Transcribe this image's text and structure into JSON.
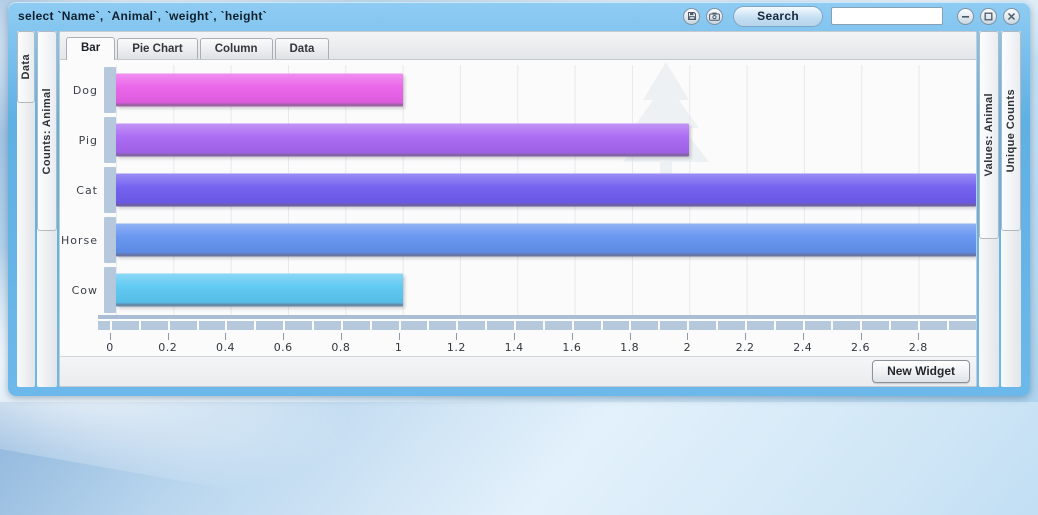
{
  "window": {
    "title": "select `Name`, `Animal`, `weight`, `height`",
    "search_label": "Search",
    "search_value": ""
  },
  "left_rails": [
    {
      "label": "Data"
    },
    {
      "label": "Counts: Animal"
    }
  ],
  "right_rails": [
    {
      "label": "Values: Animal"
    },
    {
      "label": "Unique Counts"
    }
  ],
  "tabs": [
    {
      "label": "Bar",
      "active": true
    },
    {
      "label": "Pie Chart",
      "active": false
    },
    {
      "label": "Column",
      "active": false
    },
    {
      "label": "Data",
      "active": false
    }
  ],
  "chart_data": {
    "type": "bar",
    "orientation": "horizontal",
    "title": "",
    "xlabel": "",
    "ylabel": "",
    "categories": [
      "Dog",
      "Pig",
      "Cat",
      "Horse",
      "Cow"
    ],
    "values": [
      1,
      2,
      3,
      3,
      1
    ],
    "bar_colors": [
      "#e95fe9",
      "#a765f2",
      "#6f5cf0",
      "#6191ef",
      "#59c7f2"
    ],
    "xlim": [
      0,
      3
    ],
    "tick_step": 0.2,
    "tick_labels": [
      "0",
      "0.2",
      "0.4",
      "0.6",
      "0.8",
      "1",
      "1.2",
      "1.4",
      "1.6",
      "1.8",
      "2",
      "2.2",
      "2.4",
      "2.6",
      "2.8"
    ],
    "grid": true,
    "legend": false
  },
  "footer": {
    "new_widget_label": "New Widget"
  },
  "colors": {
    "frame_blue": "#6db8ea",
    "axis_band": "#b6c8db",
    "gridline": "#e8e8ee"
  }
}
